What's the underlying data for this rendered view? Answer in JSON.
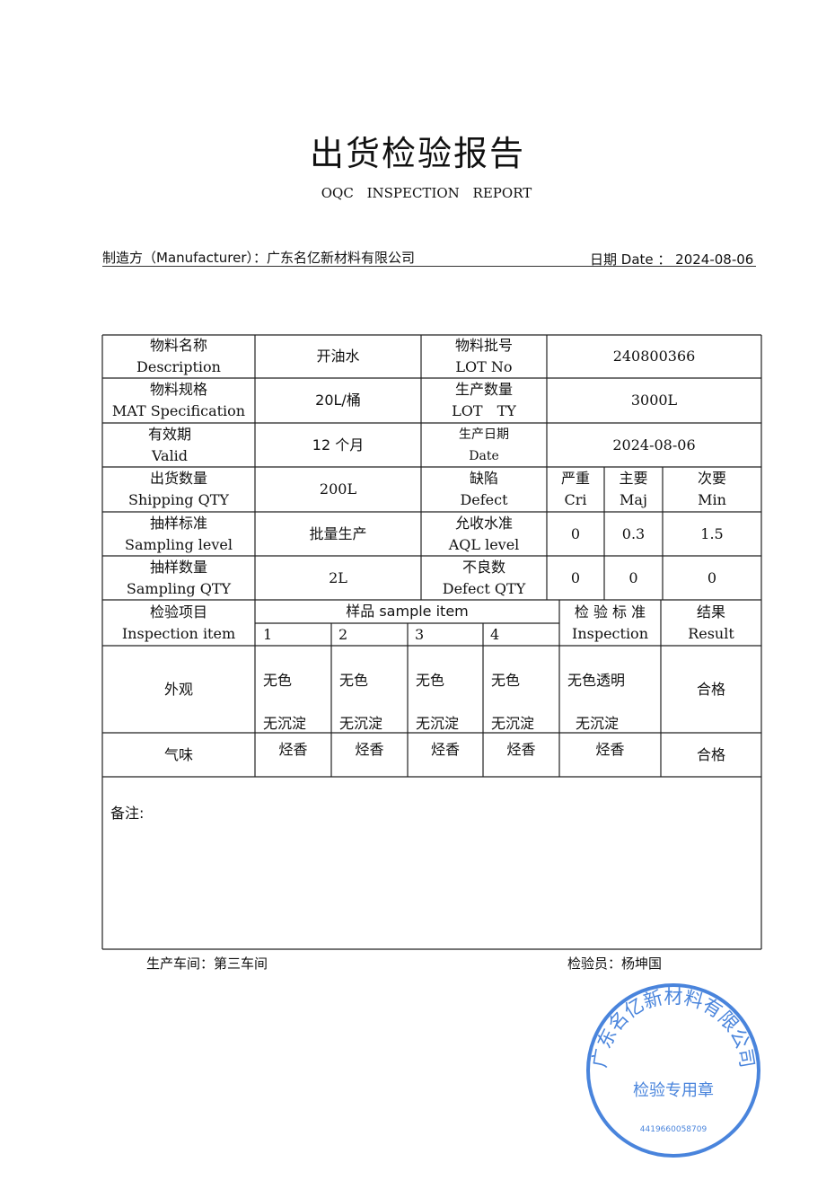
{
  "title": "出货检验报告",
  "subtitle": "OQC INSPECTION REPORT",
  "manufacturer": {
    "label": "制造方（Manufacturer）：",
    "value": "广东名亿新材料有限公司"
  },
  "date": {
    "label": "日期 Date ：",
    "value": "2024-08-06"
  },
  "rows": {
    "desc": {
      "zh": "物料名称",
      "en": "Description",
      "value": "开油水"
    },
    "lot": {
      "zh": "物料批号",
      "en": "LOT No",
      "value": "240800366"
    },
    "spec": {
      "zh": "物料规格",
      "en": "MAT Specification",
      "value": "20L/桶"
    },
    "qty": {
      "zh": "生产数量",
      "en": "LOT　TY",
      "value": "3000L"
    },
    "valid": {
      "zh": "有效期",
      "en": "Valid",
      "value": "12 个月"
    },
    "proddate": {
      "zh": "生产日期",
      "en": "Date",
      "value": "2024-08-06"
    },
    "ship": {
      "zh": "出货数量",
      "en": "Shipping QTY",
      "value": "200L"
    },
    "defect": {
      "zh": "缺陷",
      "en": "Defect"
    },
    "cri": {
      "zh": "严重",
      "en": "Cri"
    },
    "maj": {
      "zh": "主要",
      "en": "Maj"
    },
    "min": {
      "zh": "次要",
      "en": "Min"
    },
    "sampling": {
      "zh": "抽样标准",
      "en": "Sampling level",
      "value": "批量生产"
    },
    "aql": {
      "zh": "允收水准",
      "en": "AQL level",
      "cri": "0",
      "maj": "0.3",
      "min": "1.5"
    },
    "sqty": {
      "zh": "抽样数量",
      "en": "Sampling QTY",
      "value": "2L"
    },
    "dqty": {
      "zh": "不良数",
      "en": "Defect QTY",
      "cri": "0",
      "maj": "0",
      "min": "0"
    }
  },
  "inspection": {
    "item": {
      "zh": "检验项目",
      "en": "Inspection item"
    },
    "sample": "样品  sample item",
    "cols": [
      "1",
      "2",
      "3",
      "4"
    ],
    "standard": {
      "zh": "检 验 标 准",
      "en": "Inspection"
    },
    "result": {
      "zh": "结果",
      "en": "Result"
    },
    "items": [
      {
        "name": "外观",
        "samples": [
          [
            "无色",
            "无沉淀"
          ],
          [
            "无色",
            "无沉淀"
          ],
          [
            "无色",
            "无沉淀"
          ],
          [
            "无色",
            "无沉淀"
          ]
        ],
        "standard": [
          "无色透明",
          "无沉淀"
        ],
        "result": "合格"
      },
      {
        "name": "气味",
        "samples": [
          "烃香",
          "烃香",
          "烃香",
          "烃香"
        ],
        "standard": "烃香",
        "result": "合格"
      }
    ]
  },
  "remarks_label": "备注:",
  "workshop": "生产车间：第三车间",
  "inspector": "检验员：杨坤国",
  "stamp": {
    "top": "广东名亿新材料有限公司",
    "center": "检验专用章",
    "number": "4419660058709",
    "color": "#2a6fd6"
  }
}
